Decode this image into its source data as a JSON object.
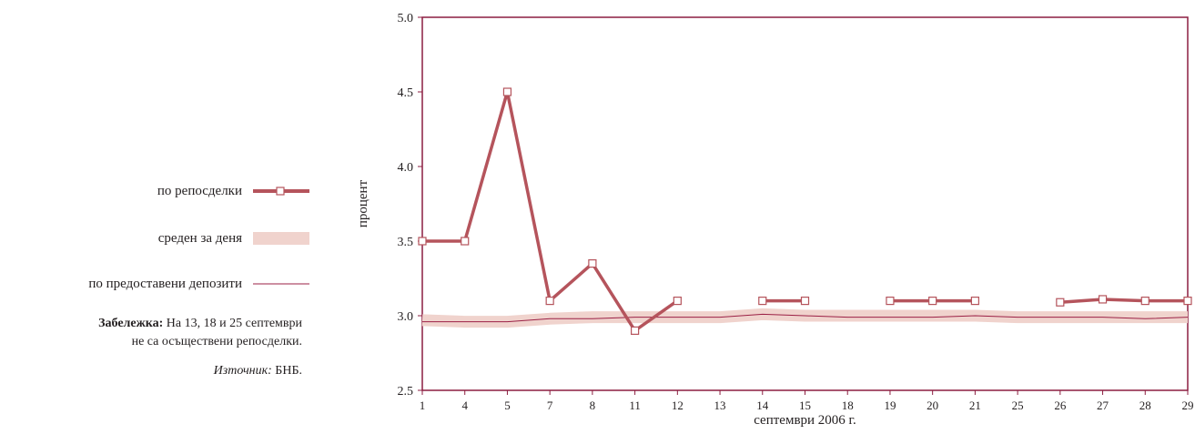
{
  "legend": {
    "repo": "по репосделки",
    "average": "среден за деня",
    "deposits": "по предоставени депозити"
  },
  "note": {
    "bold": "Забележка:",
    "line1_rest": " На 13, 18 и 25 септември",
    "line2": "не са осъществени репосделки.",
    "source_italic": "Източник:",
    "source_rest": " БНБ."
  },
  "colors": {
    "repo": "#b5545c",
    "average_band": "#f0d3cd",
    "deposits": "#9b2045",
    "axis": "#8c1d40"
  },
  "chart_data": {
    "type": "line",
    "xlabel": "септември 2006 г.",
    "ylabel": "процент",
    "ylim": [
      2.5,
      5.0
    ],
    "yticks": [
      "2.5",
      "3.0",
      "3.5",
      "4.0",
      "4.5",
      "5.0"
    ],
    "categories": [
      "1",
      "4",
      "5",
      "7",
      "8",
      "11",
      "12",
      "13",
      "14",
      "15",
      "18",
      "19",
      "20",
      "21",
      "25",
      "26",
      "27",
      "28",
      "29"
    ],
    "series": [
      {
        "name": "по репосделки",
        "style": "thick-line-square-markers",
        "values": [
          3.5,
          3.5,
          4.5,
          3.1,
          3.35,
          2.9,
          3.1,
          null,
          3.1,
          3.1,
          null,
          3.1,
          3.1,
          3.1,
          null,
          3.09,
          3.11,
          3.1,
          3.1
        ]
      },
      {
        "name": "среден за деня",
        "style": "wide-band",
        "values": [
          2.97,
          2.96,
          2.96,
          2.98,
          2.99,
          2.99,
          2.99,
          2.99,
          3.01,
          3.0,
          3.0,
          3.0,
          3.0,
          3.0,
          2.99,
          2.99,
          2.99,
          2.99,
          2.99
        ]
      },
      {
        "name": "по предоставени депозити",
        "style": "thin-line",
        "values": [
          2.96,
          2.96,
          2.96,
          2.98,
          2.98,
          2.99,
          2.99,
          2.99,
          3.01,
          3.0,
          2.99,
          2.99,
          2.99,
          3.0,
          2.99,
          2.99,
          2.99,
          2.98,
          2.99
        ]
      }
    ]
  }
}
